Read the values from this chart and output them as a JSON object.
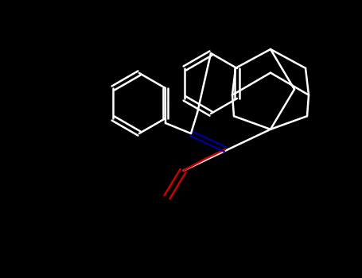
{
  "background_color": "#000000",
  "bond_color": "#ffffff",
  "nitrogen_color": "#00008b",
  "oxygen_color": "#cc0000",
  "bond_width": 1.8,
  "figsize": [
    4.55,
    3.5
  ],
  "dpi": 100
}
